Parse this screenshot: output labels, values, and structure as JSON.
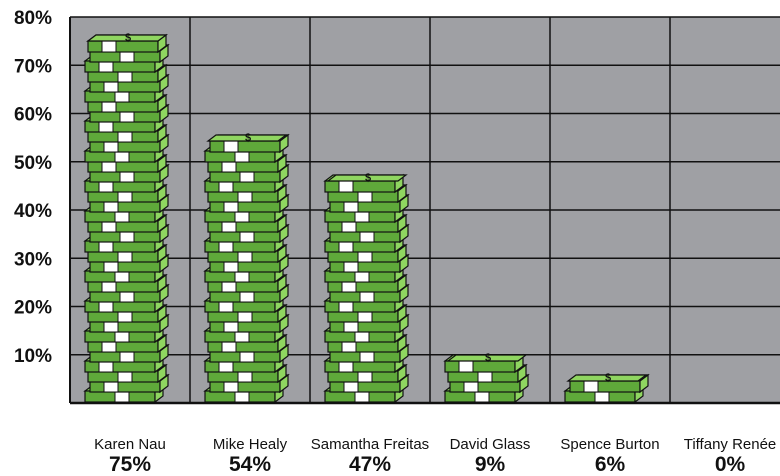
{
  "chart_data": {
    "type": "bar",
    "title": "",
    "xlabel": "",
    "ylabel": "",
    "categories": [
      "Karen Nau",
      "Mike Healy",
      "Samantha Freitas",
      "David Glass",
      "Spence Burton",
      "Tiffany Renée"
    ],
    "values": [
      75,
      54,
      47,
      9,
      6,
      0
    ],
    "value_labels": [
      "75%",
      "54%",
      "47%",
      "9%",
      "6%",
      "0%"
    ],
    "y_ticks": [
      "10%",
      "20%",
      "30%",
      "40%",
      "50%",
      "60%",
      "70%",
      "80%"
    ],
    "ylim": [
      0,
      80
    ],
    "grid": true,
    "legend": "none",
    "bar_style": "stacks of cash bundles",
    "colors": {
      "plot_background": "#9fa0a4",
      "grid": "#111111",
      "bill_green": "#8fd660",
      "bill_dark_green": "#5fa93a",
      "band_white": "#ffffff",
      "outline": "#111111"
    }
  }
}
